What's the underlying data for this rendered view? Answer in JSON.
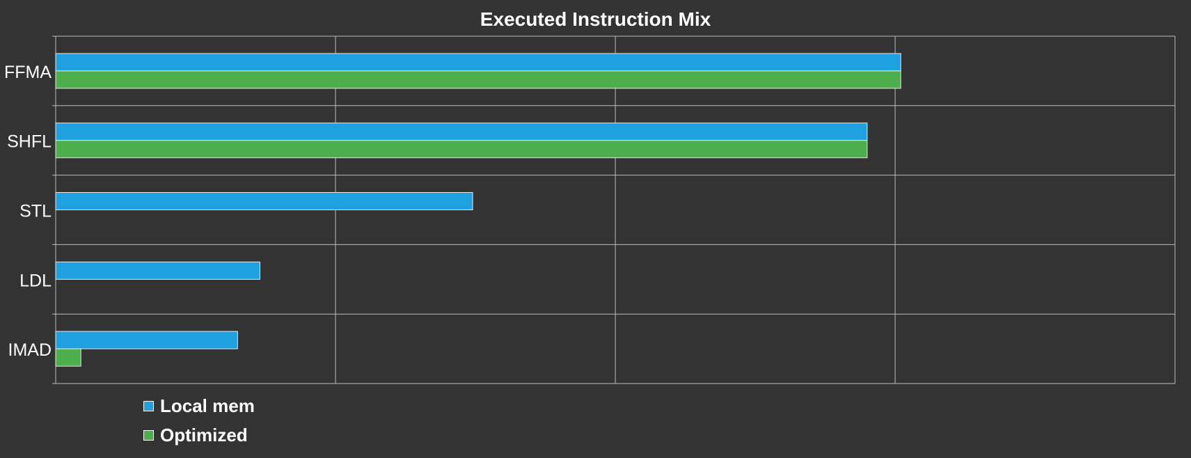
{
  "chart_data": {
    "type": "bar",
    "orientation": "horizontal",
    "title": "Executed Instruction Mix",
    "categories": [
      "FFMA",
      "SHFL",
      "STL",
      "LDL",
      "IMAD"
    ],
    "series": [
      {
        "name": "Local mem",
        "color": "#1fa1e0",
        "values": [
          302,
          290,
          149,
          73,
          65
        ]
      },
      {
        "name": "Optimized",
        "color": "#4caf4c",
        "values": [
          302,
          290,
          0,
          0,
          9
        ]
      }
    ],
    "xlim": [
      0,
      400
    ],
    "grid": true,
    "legend_position": "bottom-left",
    "colors": {
      "background": "#333333",
      "grid": "#bdbdbd",
      "text": "#ffffff"
    }
  }
}
